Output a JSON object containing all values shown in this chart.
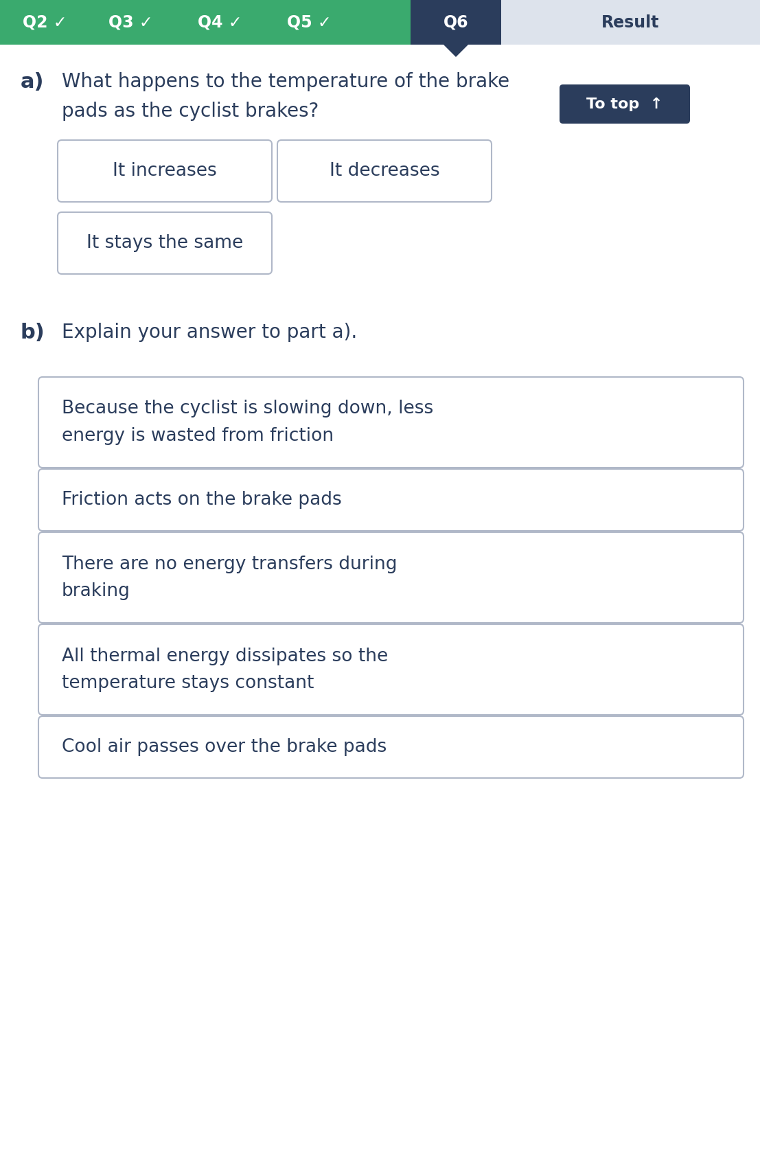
{
  "nav_bg_color": "#3aaa6e",
  "nav_q6_color": "#2b3d5c",
  "nav_result_color": "#dde3ec",
  "body_bg": "#ffffff",
  "text_color": "#2b3d5c",
  "to_top_bg": "#2b3d5c",
  "to_top_text_color": "#ffffff",
  "options_a": [
    "It increases",
    "It decreases",
    "It stays the same"
  ],
  "question_b_text": "Explain your answer to part a).",
  "options_b": [
    "Because the cyclist is slowing down, less\nenergy is wasted from friction",
    "Friction acts on the brake pads",
    "There are no energy transfers during\nbraking",
    "All thermal energy dissipates so the\ntemperature stays constant",
    "Cool air passes over the brake pads"
  ],
  "box_border_color": "#b0b8c8",
  "box_bg_color": "#ffffff",
  "font_size_nav": 17,
  "font_size_label": 22,
  "font_size_question": 20,
  "font_size_option": 19,
  "font_size_totop": 16
}
